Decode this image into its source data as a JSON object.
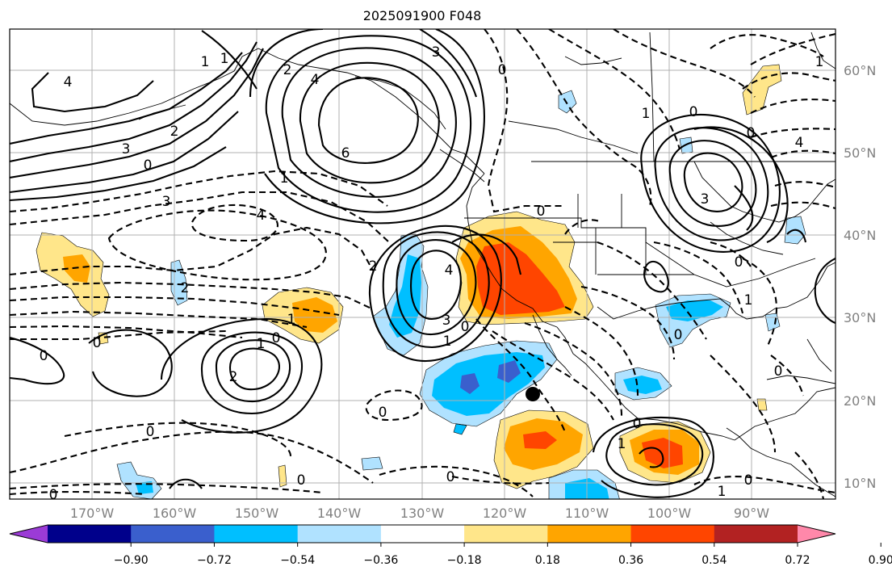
{
  "title": "2025091900 F048",
  "lat_labels": [
    "60°N",
    "50°N",
    "40°N",
    "30°N",
    "20°N",
    "10°N"
  ],
  "lon_labels": [
    "170°W",
    "160°W",
    "150°W",
    "140°W",
    "130°W",
    "120°W",
    "110°W",
    "100°W",
    "90°W"
  ],
  "colorbar": {
    "ticks": [
      "−0.90",
      "−0.72",
      "−0.54",
      "−0.36",
      "−0.18",
      "0.18",
      "0.36",
      "0.54",
      "0.72",
      "0.90"
    ],
    "colors": [
      "#9b3bd6",
      "#00008b",
      "#3a5fcd",
      "#00bfff",
      "#b0e2ff",
      "#ffffff",
      "#ffe68a",
      "#ffa500",
      "#ff4500",
      "#b22222",
      "#ff88aa"
    ]
  },
  "contour_labels": {
    "c_4_nw": "4",
    "c_1_pac": "1",
    "c_2_pac": "2",
    "c_3_pac": "3",
    "c_0_pac": "0",
    "c_4_gulf": "4",
    "c_6_gulf": "6",
    "c_3_ak": "3",
    "c_2_ak": "2",
    "c_1_ak": "1",
    "c_0_ak": "0",
    "c_3_mid": "3",
    "c_1_mid": "1",
    "c_4_mid": "4",
    "c_2_mid": "2",
    "c_2_left": "2",
    "c_1_left": "1",
    "c_0_left": "0",
    "c_0_far": "0",
    "c_1_hi": "1",
    "c_0_hi": "0",
    "c_2_hi": "2",
    "c_4_cal": "4",
    "c_3_cal": "3",
    "c_0_cal": "0",
    "c_1_cal": "1",
    "c_0_west": "0",
    "c_0_bay": "0",
    "c_0_trop": "0",
    "c_0_bot": "0",
    "c_0_s1": "0",
    "c_1_mex": "1",
    "c_0_mex": "0",
    "c_0_can": "0",
    "c_3_can": "3",
    "c_1_can": "1",
    "c_4_can": "4",
    "c_0_us": "0",
    "c_1_us": "1",
    "c_0_gulf2": "0",
    "c_0_e1": "0",
    "c_0_e2": "0",
    "c_1_e": "1",
    "c_0_e3": "0",
    "c_0_e4": "0",
    "c_1_se": "1"
  },
  "marker": "filled-circle"
}
